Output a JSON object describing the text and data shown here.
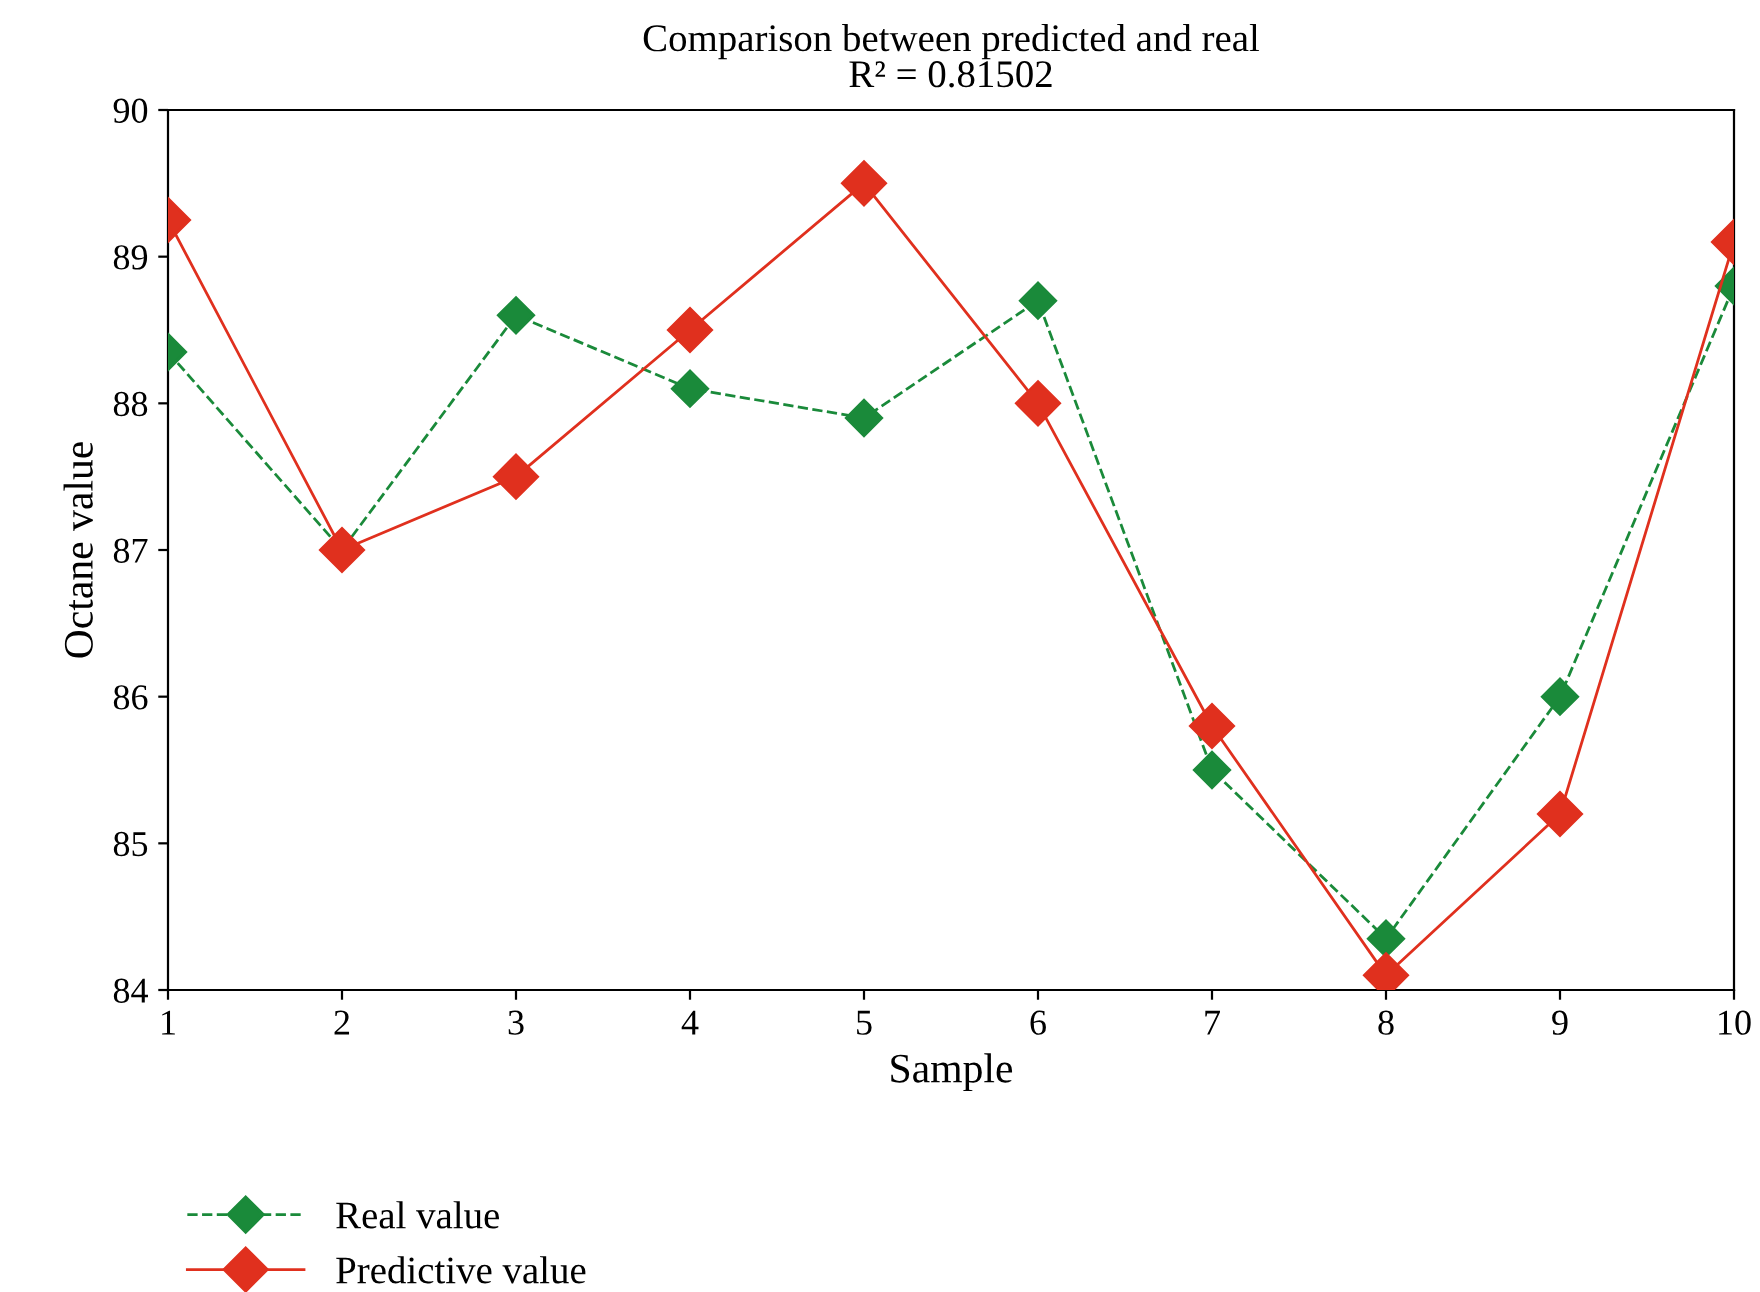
{
  "chart_data": {
    "type": "line",
    "title": "Comparison between predicted and real",
    "subtitle": "R² = 0.81502",
    "xlabel": "Sample",
    "ylabel": "Octane value",
    "x": [
      1,
      2,
      3,
      4,
      5,
      6,
      7,
      8,
      9,
      10
    ],
    "series": [
      {
        "name": "Real value",
        "color": "#1a8a3a",
        "line_style": "dashed",
        "marker": "diamond",
        "values": [
          88.35,
          87.0,
          88.6,
          88.1,
          87.9,
          88.7,
          85.5,
          84.35,
          86.0,
          88.8
        ]
      },
      {
        "name": "Predictive value",
        "color": "#e0301e",
        "line_style": "solid",
        "marker": "diamond",
        "values": [
          89.25,
          87.0,
          87.5,
          88.5,
          89.5,
          88.0,
          85.8,
          84.1,
          85.2,
          89.1
        ]
      }
    ],
    "xlim": [
      1,
      10
    ],
    "xticks": [
      1,
      2,
      3,
      4,
      5,
      6,
      7,
      8,
      9,
      10
    ],
    "ylim": [
      84,
      90
    ],
    "yticks": [
      84,
      85,
      86,
      87,
      88,
      89,
      90
    ],
    "grid": false,
    "legend": "bottom left"
  }
}
